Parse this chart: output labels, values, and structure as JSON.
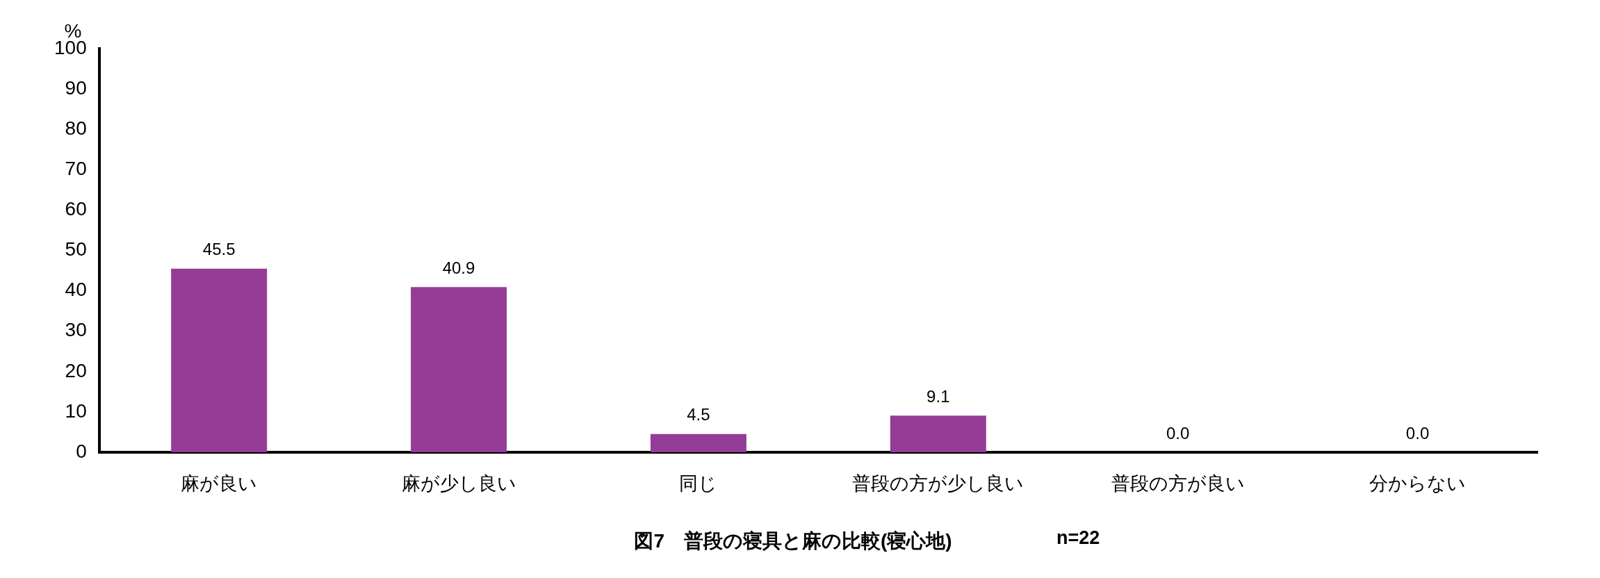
{
  "chart_data": {
    "type": "bar",
    "title": "図7　普段の寝具と麻の比較(寝心地)",
    "ylabel": "%",
    "annotations": [
      "n=22"
    ],
    "categories": [
      "麻が良い",
      "麻が少し良い",
      "同じ",
      "普段の方が少し良い",
      "普段の方が良い",
      "分からない"
    ],
    "values": [
      45.5,
      40.9,
      4.5,
      9.1,
      0.0,
      0.0
    ],
    "color": "#943c96",
    "value_labels": [
      "45.5",
      "40.9",
      "4.5",
      "9.1",
      "0.0",
      "0.0"
    ],
    "ylim": [
      0,
      100
    ],
    "yticks": [
      0,
      10,
      20,
      30,
      40,
      50,
      60,
      70,
      80,
      90,
      100
    ],
    "grid": false,
    "legend": false
  }
}
